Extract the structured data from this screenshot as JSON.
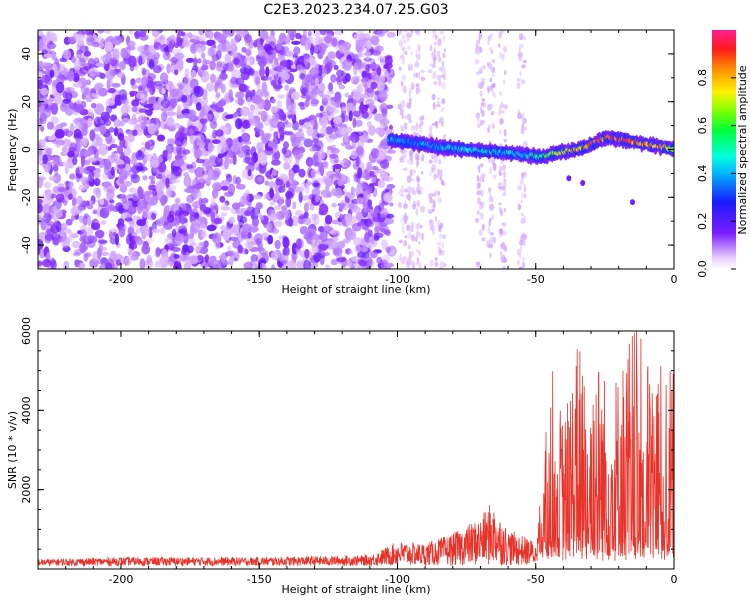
{
  "chart_data": [
    {
      "type": "heatmap",
      "title": "C2E3.2023.234.07.25.G03",
      "xlabel": "Height of straight line (km)",
      "ylabel": "Frequency (Hz)",
      "xlim": [
        -230,
        0
      ],
      "ylim": [
        -50,
        50
      ],
      "xticks": [
        "-200",
        "-150",
        "-100",
        "-50",
        "0"
      ],
      "yticks": [
        "-40",
        "-20",
        "0",
        "20",
        "40"
      ],
      "colorbar": {
        "label": "Normalized spectral amplitude",
        "range": [
          0,
          1
        ],
        "ticks": [
          "0.0",
          "0.2",
          "0.4",
          "0.6",
          "0.8"
        ]
      },
      "signal_track": {
        "description": "frequency ridge of signal",
        "x": [
          -103,
          -95,
          -85,
          -75,
          -65,
          -55,
          -48,
          -40,
          -32,
          -25,
          -18,
          -10,
          -3,
          0
        ],
        "freq": [
          4,
          3,
          1,
          0,
          -1,
          -2,
          -3,
          -1,
          1,
          5,
          4,
          2,
          1,
          0
        ],
        "amplitude": [
          0.4,
          0.35,
          0.4,
          0.45,
          0.45,
          0.4,
          0.55,
          0.7,
          0.8,
          0.85,
          0.9,
          0.85,
          0.75,
          0.6
        ]
      }
    },
    {
      "type": "line",
      "xlabel": "Height of straight line (km)",
      "ylabel": "SNR (10 * v/v)",
      "xlim": [
        -230,
        0
      ],
      "ylim": [
        0,
        6000
      ],
      "xticks": [
        "-200",
        "-150",
        "-100",
        "-50",
        "0"
      ],
      "yticks": [
        "2000",
        "4000",
        "6000"
      ],
      "series": [
        {
          "name": "SNR",
          "color": "#e8332a",
          "envelope_x": [
            -230,
            -200,
            -150,
            -110,
            -100,
            -90,
            -80,
            -70,
            -66,
            -60,
            -50,
            -48,
            -45,
            -40,
            -35,
            -30,
            -25,
            -20,
            -15,
            -10,
            -5,
            0
          ],
          "envelope_max": [
            250,
            300,
            300,
            350,
            700,
            650,
            900,
            1300,
            1700,
            1000,
            700,
            1600,
            5100,
            3600,
            5500,
            5800,
            4700,
            4800,
            6000,
            5200,
            4900,
            4700
          ]
        }
      ]
    }
  ]
}
